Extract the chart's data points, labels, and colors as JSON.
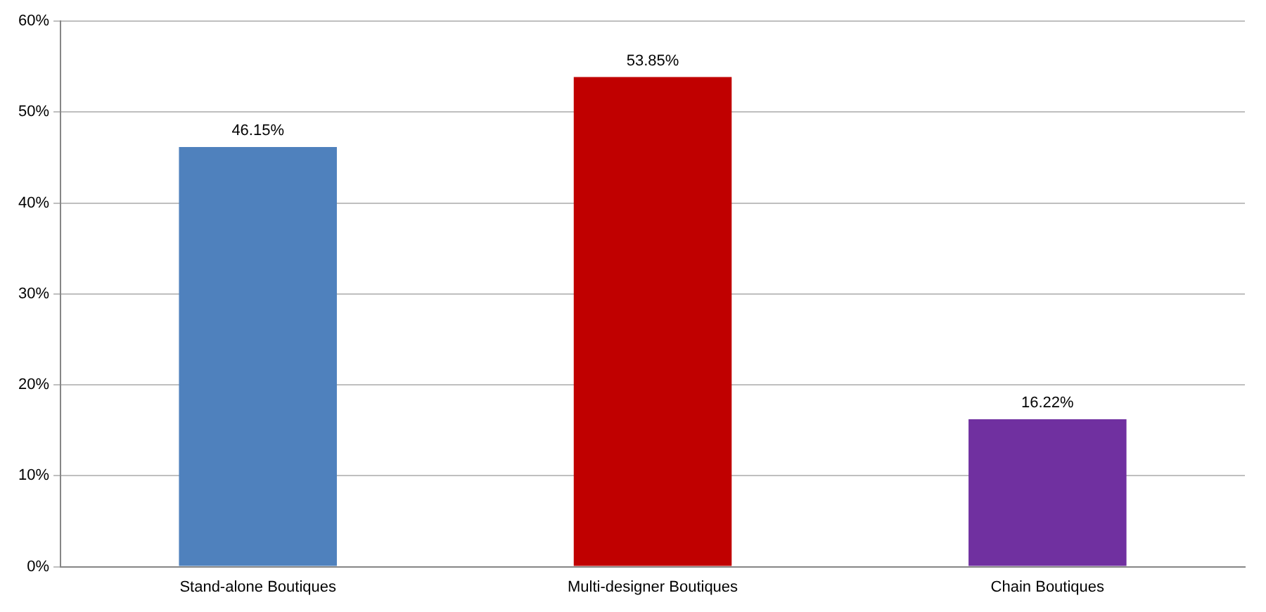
{
  "chart_data": {
    "type": "bar",
    "categories": [
      "Stand-alone Boutiques",
      "Multi-designer Boutiques",
      "Chain Boutiques"
    ],
    "values": [
      46.15,
      53.85,
      16.22
    ],
    "colors": [
      "#4f81bd",
      "#c00000",
      "#7030a0"
    ],
    "value_labels": [
      "46.15%",
      "53.85%",
      "16.22%"
    ],
    "ylim": [
      0,
      60
    ],
    "yticks": [
      {
        "value": 0,
        "label": "0%"
      },
      {
        "value": 10,
        "label": "10%"
      },
      {
        "value": 20,
        "label": "20%"
      },
      {
        "value": 30,
        "label": "30%"
      },
      {
        "value": 40,
        "label": "40%"
      },
      {
        "value": 50,
        "label": "50%"
      },
      {
        "value": 60,
        "label": "60%"
      }
    ],
    "grid": "y",
    "legend": false
  }
}
